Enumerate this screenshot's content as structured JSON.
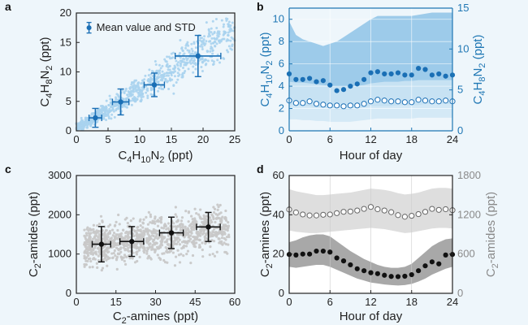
{
  "colors": {
    "background": "#eef6fb",
    "blue_dark": "#1a6fb5",
    "blue_light": "#a9d3ee",
    "blue_band_outer": "#8ec3e6",
    "blue_band_inner": "#cfe6f5",
    "gray_dots": "#c8c8c8",
    "black": "#111111",
    "gray_band_dark": "#9e9e9e",
    "gray_band_light": "#dedede"
  },
  "chart_data": [
    {
      "panel": "a",
      "type": "scatter",
      "xlabel_parts": [
        "C",
        "4",
        "H",
        "10",
        "N",
        "2",
        " (ppt)"
      ],
      "ylabel_parts": [
        "C",
        "4",
        "H",
        "8",
        "N",
        "2",
        " (ppt)"
      ],
      "xlim": [
        0,
        25
      ],
      "ylim": [
        0,
        20
      ],
      "xticks": [
        0,
        5,
        10,
        15,
        20,
        25
      ],
      "yticks": [
        0,
        5,
        10,
        15,
        20
      ],
      "legend": "Mean value and STD",
      "legend_placement": "top-left",
      "scatter_note": "light-blue cloud of individual points along y ≈ 0.7x",
      "mean_points": [
        {
          "x": 3.0,
          "y": 2.2,
          "xerr": 1.0,
          "yerr": 1.6
        },
        {
          "x": 7.0,
          "y": 4.9,
          "xerr": 1.3,
          "yerr": 2.2
        },
        {
          "x": 12.3,
          "y": 7.8,
          "xerr": 1.6,
          "yerr": 2.0
        },
        {
          "x": 19.2,
          "y": 12.7,
          "xerr": 3.6,
          "yerr": 3.5
        }
      ]
    },
    {
      "panel": "b",
      "type": "line",
      "xlabel": "Hour of day",
      "ylabel_left_parts": [
        "C",
        "4",
        "H",
        "10",
        "N",
        "2",
        " (ppt)"
      ],
      "ylabel_right_parts": [
        "C",
        "4",
        "H",
        "8",
        "N",
        "2",
        " (ppt)"
      ],
      "xlim": [
        0,
        24
      ],
      "ylim_left": [
        0,
        11
      ],
      "ylim_right": [
        0,
        15
      ],
      "xticks": [
        0,
        6,
        12,
        18,
        24
      ],
      "yticks_left": [
        0,
        2,
        4,
        6,
        8,
        10
      ],
      "yticks_right": [
        0,
        5,
        10,
        15
      ],
      "x": [
        0,
        1,
        2,
        3,
        4,
        5,
        6,
        7,
        8,
        9,
        10,
        11,
        12,
        13,
        14,
        15,
        16,
        17,
        18,
        19,
        20,
        21,
        22,
        23,
        24
      ],
      "series": [
        {
          "name": "C4H10N2",
          "axis": "left",
          "marker": "filled",
          "values": [
            5.1,
            4.6,
            4.6,
            4.7,
            4.4,
            4.5,
            4.1,
            3.6,
            3.7,
            4.0,
            4.2,
            4.6,
            5.2,
            5.3,
            5.1,
            5.1,
            5.2,
            5.0,
            5.0,
            5.6,
            5.5,
            5.0,
            5.1,
            4.9,
            5.0
          ],
          "band_upper": [
            9.8,
            8.6,
            8.2,
            8.0,
            7.8,
            7.6,
            7.8,
            8.0,
            8.4,
            8.8,
            9.2,
            9.6,
            10.0,
            10.3,
            10.3,
            10.3,
            10.3,
            10.3,
            10.3,
            10.4,
            10.5,
            10.6,
            10.6,
            10.6,
            10.6
          ],
          "band_lower": [
            2.3,
            2.3,
            2.2,
            2.2,
            2.1,
            2.1,
            2.0,
            1.9,
            1.9,
            1.9,
            2.0,
            2.1,
            2.2,
            2.2,
            2.2,
            2.2,
            2.3,
            2.3,
            2.3,
            2.3,
            2.4,
            2.4,
            2.4,
            2.4,
            2.4
          ]
        },
        {
          "name": "C4H8N2",
          "axis": "right",
          "marker": "open",
          "values": [
            3.7,
            3.4,
            3.4,
            3.6,
            3.3,
            3.2,
            3.1,
            3.1,
            3.0,
            3.1,
            3.1,
            3.3,
            3.6,
            3.8,
            3.7,
            3.6,
            3.6,
            3.5,
            3.5,
            3.8,
            3.7,
            3.6,
            3.6,
            3.7,
            3.6
          ],
          "band_upper": [
            6.0,
            5.9,
            5.9,
            5.8,
            5.7,
            5.6,
            5.5,
            5.4,
            5.4,
            5.4,
            5.5,
            5.6,
            5.8,
            5.9,
            6.0,
            6.0,
            6.0,
            6.1,
            6.1,
            6.2,
            6.2,
            6.2,
            6.2,
            6.2,
            6.2
          ],
          "band_lower": [
            1.4,
            1.4,
            1.3,
            1.3,
            1.2,
            1.2,
            1.1,
            1.1,
            1.1,
            1.1,
            1.2,
            1.3,
            1.4,
            1.5,
            1.5,
            1.5,
            1.5,
            1.5,
            1.5,
            1.6,
            1.6,
            1.6,
            1.6,
            1.6,
            1.6
          ]
        }
      ]
    },
    {
      "panel": "c",
      "type": "scatter",
      "xlabel_parts": [
        "C",
        "2",
        "-amines (ppt)"
      ],
      "ylabel_parts": [
        "C",
        "2",
        "-amides (ppt)"
      ],
      "xlim": [
        0,
        60
      ],
      "ylim": [
        0,
        3000
      ],
      "xticks": [
        0,
        15,
        30,
        45,
        60
      ],
      "yticks": [
        0,
        1000,
        2000,
        3000
      ],
      "scatter_note": "gray cloud of individual points, x 3–58, y 600–2900",
      "mean_points": [
        {
          "x": 9.5,
          "y": 1250,
          "xerr": 3.5,
          "yerr": 450
        },
        {
          "x": 21.0,
          "y": 1320,
          "xerr": 4.5,
          "yerr": 380
        },
        {
          "x": 36.0,
          "y": 1540,
          "xerr": 4.5,
          "yerr": 400
        },
        {
          "x": 50.0,
          "y": 1690,
          "xerr": 4.5,
          "yerr": 370
        }
      ]
    },
    {
      "panel": "d",
      "type": "line",
      "xlabel": "Hour of day",
      "ylabel_left_parts": [
        "C",
        "2",
        "-amines (ppt)"
      ],
      "ylabel_right_parts": [
        "C",
        "2",
        "-amides (ppt)"
      ],
      "xlim": [
        0,
        24
      ],
      "ylim_left": [
        0,
        60
      ],
      "ylim_right": [
        0,
        1800
      ],
      "xticks": [
        0,
        6,
        12,
        18,
        24
      ],
      "yticks_left": [
        0,
        20,
        40,
        60
      ],
      "yticks_right": [
        0,
        600,
        1200,
        1800
      ],
      "x": [
        0,
        1,
        2,
        3,
        4,
        5,
        6,
        7,
        8,
        9,
        10,
        11,
        12,
        13,
        14,
        15,
        16,
        17,
        18,
        19,
        20,
        21,
        22,
        23,
        24
      ],
      "series": [
        {
          "name": "C2-amines",
          "axis": "left",
          "marker": "filled",
          "values": [
            19.8,
            19.5,
            20.0,
            20.0,
            21.5,
            21.5,
            21.0,
            18.0,
            16.5,
            14.5,
            12.5,
            11.5,
            10.5,
            10.0,
            9.2,
            8.6,
            8.5,
            8.7,
            9.5,
            11.5,
            14.0,
            16.0,
            15.0,
            19.5,
            19.8
          ],
          "band_upper": [
            26.0,
            27.0,
            28.5,
            29.5,
            30.0,
            30.0,
            29.0,
            26.5,
            24.0,
            21.5,
            19.5,
            17.5,
            16.0,
            14.5,
            13.5,
            13.0,
            13.0,
            13.5,
            15.0,
            18.0,
            21.0,
            24.0,
            26.0,
            27.5,
            28.0
          ],
          "band_lower": [
            13.5,
            13.0,
            13.5,
            14.0,
            14.5,
            14.5,
            13.5,
            12.0,
            10.5,
            9.0,
            7.5,
            6.5,
            5.5,
            5.0,
            4.5,
            4.2,
            4.0,
            4.2,
            4.8,
            6.0,
            7.5,
            9.5,
            11.0,
            12.5,
            13.5
          ]
        },
        {
          "name": "C2-amides",
          "axis": "right",
          "marker": "open",
          "values": [
            1280,
            1235,
            1205,
            1190,
            1190,
            1200,
            1205,
            1225,
            1245,
            1250,
            1265,
            1290,
            1320,
            1285,
            1265,
            1240,
            1195,
            1170,
            1185,
            1210,
            1245,
            1290,
            1275,
            1285,
            1270
          ],
          "band_upper": [
            1590,
            1560,
            1540,
            1520,
            1500,
            1500,
            1510,
            1520,
            1530,
            1540,
            1560,
            1580,
            1600,
            1590,
            1580,
            1560,
            1530,
            1510,
            1520,
            1540,
            1570,
            1600,
            1610,
            1610,
            1600
          ],
          "band_lower": [
            960,
            940,
            930,
            920,
            920,
            930,
            940,
            950,
            960,
            970,
            980,
            990,
            1000,
            990,
            980,
            960,
            940,
            920,
            930,
            950,
            970,
            990,
            1000,
            1000,
            990
          ]
        }
      ]
    }
  ]
}
